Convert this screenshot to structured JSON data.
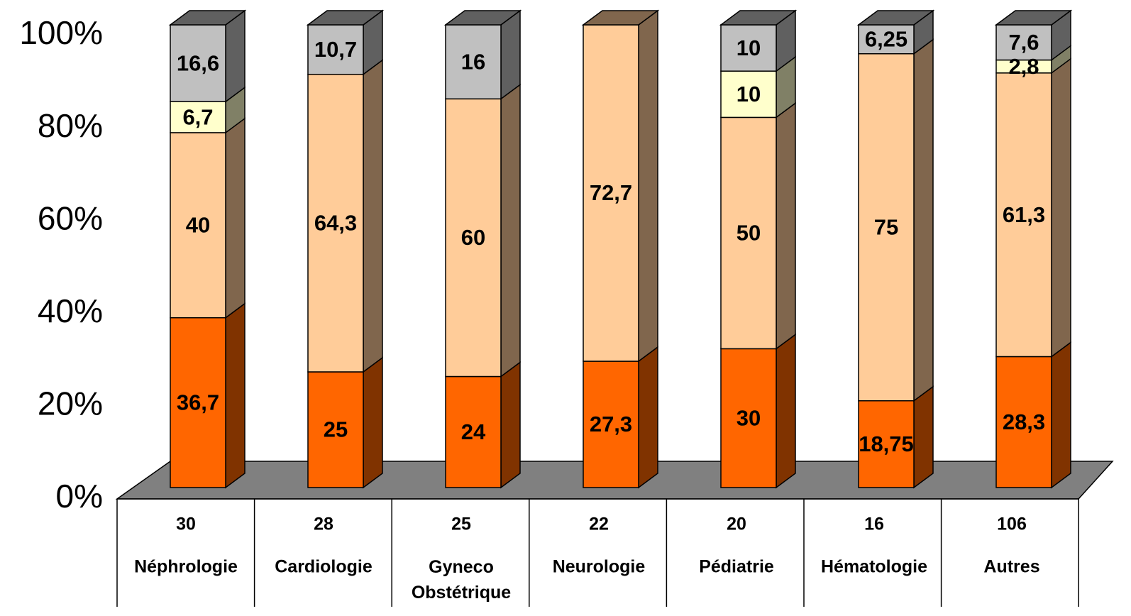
{
  "chart_data": {
    "type": "stacked_bar_3d",
    "categories": [
      "Néphrologie",
      "Cardiologie",
      "Gyneco Obstétrique",
      "Neurologie",
      "Pédiatrie",
      "Hématologie",
      "Autres"
    ],
    "counts": [
      30,
      28,
      25,
      22,
      20,
      16,
      106
    ],
    "series": [
      {
        "color": "#ff6600",
        "values": [
          36.7,
          25,
          24,
          27.3,
          30,
          18.75,
          28.3
        ],
        "value_labels": [
          "36,7",
          "25",
          "24",
          "27,3",
          "30",
          "18,75",
          "28,3"
        ]
      },
      {
        "color": "#ffcc99",
        "values": [
          40,
          64.3,
          60,
          72.7,
          50,
          75,
          61.3
        ],
        "value_labels": [
          "40",
          "64,3",
          "60",
          "72,7",
          "50",
          "75",
          "61,3"
        ]
      },
      {
        "color": "#ffffcc",
        "values": [
          6.7,
          null,
          null,
          null,
          10,
          null,
          2.8
        ],
        "value_labels": [
          "6,7",
          null,
          null,
          null,
          "10",
          null,
          "2,8"
        ]
      },
      {
        "color": "#c0c0c0",
        "values": [
          16.6,
          10.7,
          16,
          null,
          10,
          6.25,
          7.6
        ],
        "value_labels": [
          "16,6",
          "10,7",
          "16",
          null,
          "10",
          "6,25",
          "7,6"
        ]
      }
    ],
    "ylim": [
      0,
      100
    ],
    "yticks": [
      {
        "value": 0,
        "label": "0%"
      },
      {
        "value": 20,
        "label": "20%"
      },
      {
        "value": 40,
        "label": "40%"
      },
      {
        "value": 60,
        "label": "60%"
      },
      {
        "value": 80,
        "label": "80%"
      },
      {
        "value": 100,
        "label": "100%"
      }
    ]
  }
}
